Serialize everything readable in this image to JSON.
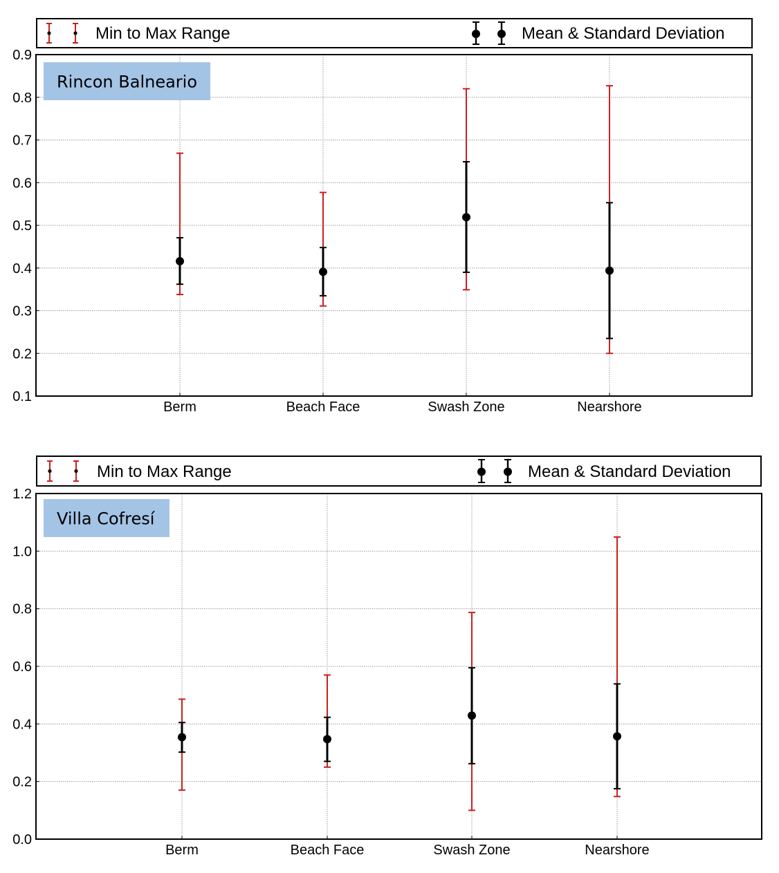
{
  "chart_data": [
    {
      "type": "scatter",
      "title": "",
      "site_label": "Rincon Balneario",
      "xlabel": "",
      "ylabel": "",
      "categories": [
        "Berm",
        "Beach Face",
        "Swash Zone",
        "Nearshore"
      ],
      "ylim": [
        0.1,
        0.9
      ],
      "yticks": [
        "0.1",
        "0.2",
        "0.3",
        "0.4",
        "0.5",
        "0.6",
        "0.7",
        "0.8",
        "0.9"
      ],
      "grid": true,
      "legend": {
        "placement": "top",
        "entries": [
          "Min to Max Range",
          "Mean & Standard Deviation"
        ]
      },
      "series": [
        {
          "name": "Min to Max Range",
          "color": "#c8201e",
          "min": [
            0.338,
            0.311,
            0.349,
            0.2
          ],
          "max": [
            0.669,
            0.577,
            0.82,
            0.827
          ]
        },
        {
          "name": "Mean & Standard Deviation",
          "color": "#000000",
          "mean": [
            0.416,
            0.391,
            0.519,
            0.394
          ],
          "std_low": [
            0.362,
            0.335,
            0.39,
            0.235
          ],
          "std_high": [
            0.471,
            0.448,
            0.649,
            0.553
          ]
        }
      ]
    },
    {
      "type": "scatter",
      "title": "",
      "site_label": "Villa Cofresí",
      "xlabel": "",
      "ylabel": "",
      "categories": [
        "Berm",
        "Beach Face",
        "Swash Zone",
        "Nearshore"
      ],
      "ylim": [
        0.0,
        1.2
      ],
      "yticks": [
        "0.0",
        "0.2",
        "0.4",
        "0.6",
        "0.8",
        "1.0",
        "1.2"
      ],
      "grid": true,
      "legend": {
        "placement": "top",
        "entries": [
          "Min to Max Range",
          "Mean & Standard Deviation"
        ]
      },
      "series": [
        {
          "name": "Min to Max Range",
          "color": "#c8201e",
          "min": [
            0.17,
            0.25,
            0.1,
            0.148
          ],
          "max": [
            0.486,
            0.57,
            0.787,
            1.049
          ]
        },
        {
          "name": "Mean & Standard Deviation",
          "color": "#000000",
          "mean": [
            0.354,
            0.347,
            0.429,
            0.357
          ],
          "std_low": [
            0.302,
            0.27,
            0.262,
            0.175
          ],
          "std_high": [
            0.405,
            0.423,
            0.595,
            0.539
          ]
        }
      ]
    }
  ],
  "colors": {
    "range": "#c8201e",
    "mean_std": "#000000",
    "site_label_bg": "#a4c4e6",
    "grid": "#9a9a9a"
  }
}
